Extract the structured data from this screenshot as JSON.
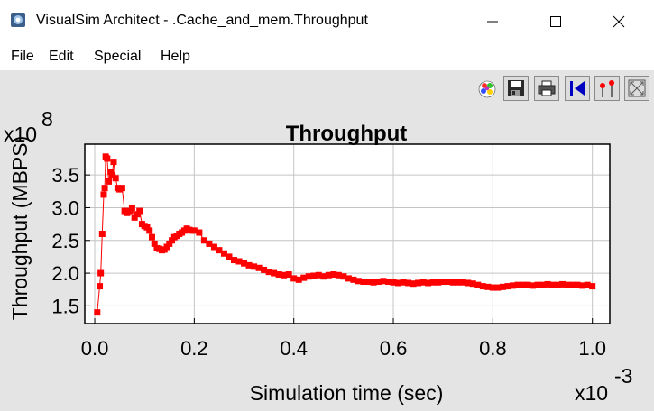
{
  "window": {
    "title": "VisualSim Architect - .Cache_and_mem.Throughput",
    "app_icon": "visualsim-app-icon",
    "controls": [
      "minimize-icon",
      "maximize-icon",
      "close-icon"
    ]
  },
  "menu": {
    "file": "File",
    "edit": "Edit",
    "special": "Special",
    "help": "Help"
  },
  "toolbar": {
    "icons": [
      "color-palette-icon",
      "save-icon",
      "print-icon",
      "reset-axes-icon",
      "line-points-icon",
      "fit-to-window-icon"
    ]
  },
  "chart_data": {
    "type": "line",
    "title": "Throughput",
    "xlabel": "Simulation time (sec)",
    "ylabel": "Throughput (MBPS)",
    "x_multiplier": "x10",
    "x_exponent": "-3",
    "y_multiplier": "x10",
    "y_exponent": "8",
    "xlim": [
      -0.02,
      1.035
    ],
    "ylim": [
      1.23,
      3.97
    ],
    "xticks": [
      "0.0",
      "0.2",
      "0.4",
      "0.6",
      "0.8",
      "1.0"
    ],
    "xtick_values": [
      0.0,
      0.2,
      0.4,
      0.6,
      0.8,
      1.0
    ],
    "yticks": [
      "1.5",
      "2.0",
      "2.5",
      "3.0",
      "3.5"
    ],
    "ytick_values": [
      1.5,
      2.0,
      2.5,
      3.0,
      3.5
    ],
    "grid": true,
    "series_color": "#ff0000",
    "series": [
      {
        "x": [
          0.005,
          0.01,
          0.012,
          0.015,
          0.018,
          0.02,
          0.022,
          0.025,
          0.028,
          0.032,
          0.035,
          0.038,
          0.042,
          0.046,
          0.05,
          0.055,
          0.06,
          0.065,
          0.07,
          0.075,
          0.08,
          0.085,
          0.09,
          0.095,
          0.1,
          0.105,
          0.11,
          0.115,
          0.12,
          0.125,
          0.13,
          0.135,
          0.14,
          0.145,
          0.15,
          0.155,
          0.16,
          0.165,
          0.17,
          0.175,
          0.18,
          0.185,
          0.19,
          0.195,
          0.2,
          0.21,
          0.22,
          0.23,
          0.24,
          0.25,
          0.26,
          0.27,
          0.28,
          0.29,
          0.3,
          0.31,
          0.32,
          0.33,
          0.34,
          0.35,
          0.36,
          0.37,
          0.38,
          0.39,
          0.4,
          0.41,
          0.42,
          0.43,
          0.44,
          0.45,
          0.46,
          0.47,
          0.48,
          0.49,
          0.5,
          0.51,
          0.52,
          0.53,
          0.54,
          0.55,
          0.56,
          0.57,
          0.58,
          0.59,
          0.6,
          0.61,
          0.62,
          0.63,
          0.64,
          0.65,
          0.66,
          0.67,
          0.68,
          0.69,
          0.7,
          0.71,
          0.72,
          0.73,
          0.74,
          0.75,
          0.76,
          0.77,
          0.78,
          0.79,
          0.8,
          0.81,
          0.82,
          0.83,
          0.84,
          0.85,
          0.86,
          0.87,
          0.88,
          0.89,
          0.9,
          0.91,
          0.92,
          0.93,
          0.94,
          0.95,
          0.96,
          0.97,
          0.98,
          0.99,
          1.0
        ],
        "y": [
          1.4,
          1.8,
          2.0,
          2.6,
          3.2,
          3.3,
          3.78,
          3.75,
          3.4,
          3.55,
          3.5,
          3.7,
          3.45,
          3.3,
          3.28,
          3.3,
          2.95,
          2.92,
          2.95,
          3.0,
          2.85,
          2.9,
          2.95,
          2.75,
          2.72,
          2.7,
          2.65,
          2.55,
          2.45,
          2.38,
          2.37,
          2.35,
          2.36,
          2.4,
          2.45,
          2.5,
          2.55,
          2.57,
          2.6,
          2.62,
          2.65,
          2.68,
          2.66,
          2.65,
          2.65,
          2.62,
          2.5,
          2.45,
          2.4,
          2.35,
          2.3,
          2.25,
          2.2,
          2.18,
          2.15,
          2.12,
          2.1,
          2.08,
          2.05,
          2.02,
          2.0,
          1.98,
          1.97,
          1.98,
          1.92,
          1.9,
          1.93,
          1.95,
          1.96,
          1.97,
          1.95,
          1.97,
          1.98,
          1.97,
          1.95,
          1.92,
          1.9,
          1.88,
          1.87,
          1.87,
          1.86,
          1.87,
          1.88,
          1.87,
          1.86,
          1.85,
          1.86,
          1.85,
          1.84,
          1.85,
          1.86,
          1.85,
          1.86,
          1.86,
          1.87,
          1.87,
          1.86,
          1.86,
          1.86,
          1.85,
          1.84,
          1.82,
          1.8,
          1.79,
          1.78,
          1.78,
          1.79,
          1.8,
          1.81,
          1.82,
          1.82,
          1.82,
          1.81,
          1.82,
          1.82,
          1.83,
          1.82,
          1.82,
          1.83,
          1.82,
          1.82,
          1.82,
          1.81,
          1.82,
          1.8
        ]
      }
    ]
  }
}
